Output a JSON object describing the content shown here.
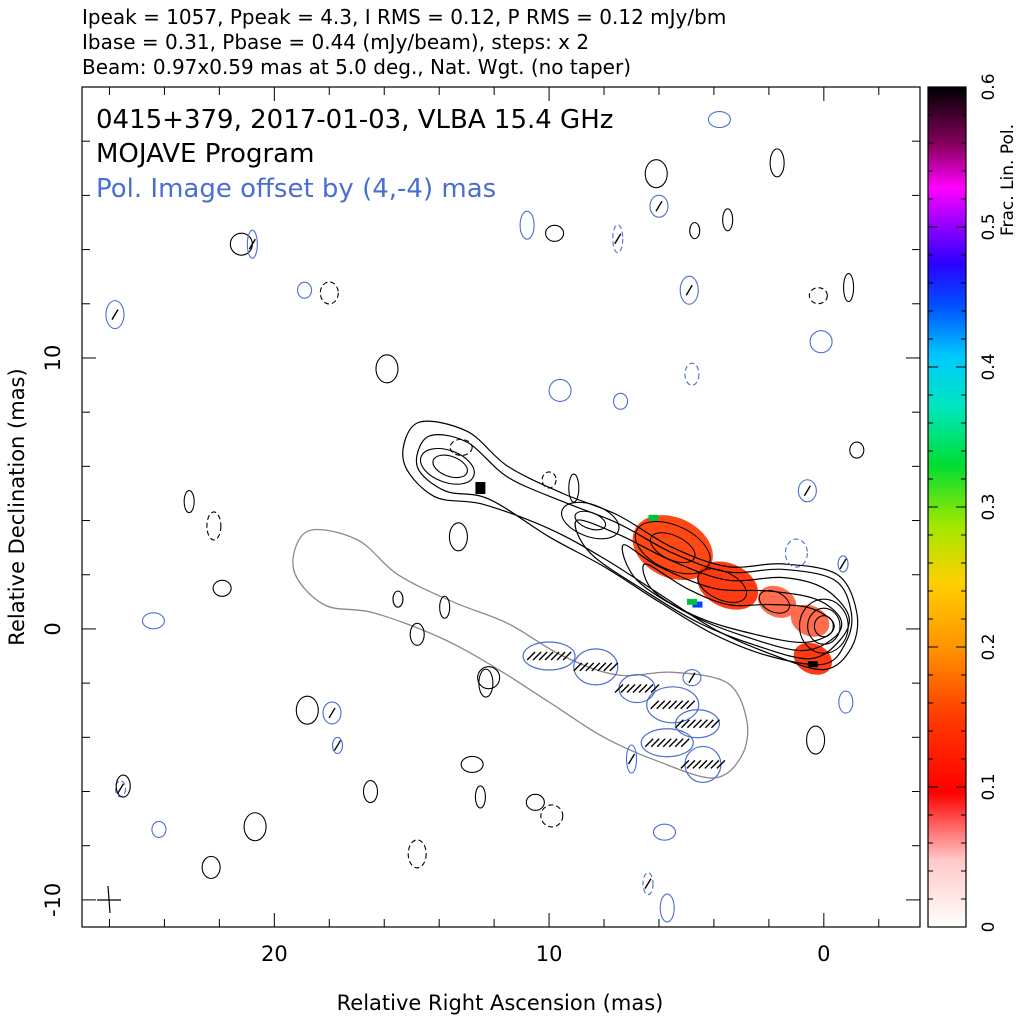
{
  "header": {
    "line1": "Ipeak = 1057, Ppeak = 4.3, I RMS = 0.12, P RMS = 0.12 mJy/bm",
    "line2": "Ibase = 0.31, Pbase = 0.44 (mJy/beam), steps: x 2",
    "line3": "Beam: 0.97x0.59 mas at 5.0 deg., Nat. Wgt. (no taper)"
  },
  "inner": {
    "source_line": "0415+379, 2017-01-03, VLBA 15.4 GHz",
    "program_line": "MOJAVE Program",
    "offset_line": "Pol. Image offset by (4,-4) mas"
  },
  "colors": {
    "stokes_i_contour": "#000000",
    "pol_contour": "#4a6fd0",
    "offset_outline": "#8a8a8a",
    "offset_text": "#4a6fd0"
  },
  "chart_data": {
    "type": "contour",
    "xlabel": "Relative Right Ascension (mas)",
    "ylabel": "Relative Declination (mas)",
    "xlim": [
      27,
      -3.5
    ],
    "ylim": [
      -11,
      20
    ],
    "xticks": [
      20,
      10,
      0
    ],
    "yticks": [
      10,
      0,
      -10
    ],
    "colorbar": {
      "label": "Frac. Lin. Pol.",
      "range": [
        0,
        0.6
      ],
      "ticks": [
        0,
        0.1,
        0.2,
        0.3,
        0.4,
        0.5,
        0.6
      ]
    },
    "beam": {
      "major_mas": 0.97,
      "minor_mas": 0.59,
      "pa_deg": 5.0
    },
    "jet_contours": [
      [
        [
          -1.2,
          0.6
        ],
        [
          -0.5,
          2.0
        ],
        [
          1.5,
          2.4
        ],
        [
          3.5,
          2.3
        ],
        [
          5.5,
          3.0
        ],
        [
          7.5,
          4.2
        ],
        [
          9.5,
          5.0
        ],
        [
          11.5,
          6.0
        ],
        [
          13.0,
          7.3
        ],
        [
          14.8,
          7.6
        ],
        [
          15.3,
          6.2
        ],
        [
          14.2,
          4.9
        ],
        [
          12.4,
          4.6
        ],
        [
          10.0,
          3.7
        ],
        [
          8.0,
          2.6
        ],
        [
          6.0,
          1.3
        ],
        [
          4.0,
          0.0
        ],
        [
          2.0,
          -0.9
        ],
        [
          0.0,
          -1.5
        ],
        [
          -1.0,
          -0.7
        ]
      ],
      [
        [
          -1.0,
          0.6
        ],
        [
          -0.4,
          1.8
        ],
        [
          1.5,
          2.2
        ],
        [
          3.5,
          2.1
        ],
        [
          5.5,
          2.8
        ],
        [
          7.5,
          3.9
        ],
        [
          9.5,
          4.7
        ],
        [
          11.5,
          5.6
        ],
        [
          13.0,
          6.9
        ],
        [
          14.4,
          7.1
        ],
        [
          14.8,
          6.0
        ],
        [
          13.8,
          5.1
        ],
        [
          12.2,
          4.8
        ],
        [
          10.0,
          3.4
        ],
        [
          8.0,
          2.3
        ],
        [
          6.0,
          1.0
        ],
        [
          4.0,
          -0.2
        ],
        [
          2.0,
          -1.0
        ],
        [
          0.0,
          -1.3
        ],
        [
          -0.8,
          -0.5
        ]
      ],
      [
        [
          -0.9,
          0.5
        ],
        [
          0.0,
          1.5
        ],
        [
          1.5,
          1.9
        ],
        [
          3.5,
          1.8
        ],
        [
          5.5,
          2.5
        ],
        [
          7.5,
          3.5
        ],
        [
          9.0,
          4.0
        ],
        [
          8.5,
          2.8
        ],
        [
          6.5,
          1.4
        ],
        [
          4.5,
          0.2
        ],
        [
          2.5,
          -0.6
        ],
        [
          0.5,
          -1.1
        ],
        [
          -0.6,
          -0.4
        ]
      ],
      [
        [
          -0.6,
          0.4
        ],
        [
          0.3,
          1.1
        ],
        [
          2.0,
          1.4
        ],
        [
          4.0,
          1.5
        ],
        [
          6.0,
          2.3
        ],
        [
          7.3,
          3.1
        ],
        [
          6.8,
          1.8
        ],
        [
          4.8,
          0.5
        ],
        [
          2.8,
          -0.3
        ],
        [
          0.8,
          -0.8
        ],
        [
          -0.4,
          -0.3
        ]
      ],
      [
        [
          -0.3,
          0.3
        ],
        [
          0.6,
          0.8
        ],
        [
          2.0,
          0.9
        ],
        [
          3.5,
          0.9
        ],
        [
          5.0,
          1.5
        ],
        [
          6.5,
          2.4
        ],
        [
          6.2,
          1.4
        ],
        [
          4.5,
          0.4
        ],
        [
          2.5,
          -0.2
        ],
        [
          0.8,
          -0.5
        ],
        [
          -0.2,
          -0.2
        ]
      ]
    ],
    "core_rings_mas": [
      0.9,
      0.6,
      0.35
    ],
    "pol_regions": [
      {
        "x": 5.5,
        "y": 3.0,
        "fraction": 0.14
      },
      {
        "x": 3.5,
        "y": 1.6,
        "fraction": 0.1
      },
      {
        "x": 1.7,
        "y": 1.0,
        "fraction": 0.06
      },
      {
        "x": 0.5,
        "y": 0.3,
        "fraction": 0.05
      },
      {
        "x": 0.4,
        "y": -1.1,
        "fraction": 0.08
      }
    ]
  }
}
